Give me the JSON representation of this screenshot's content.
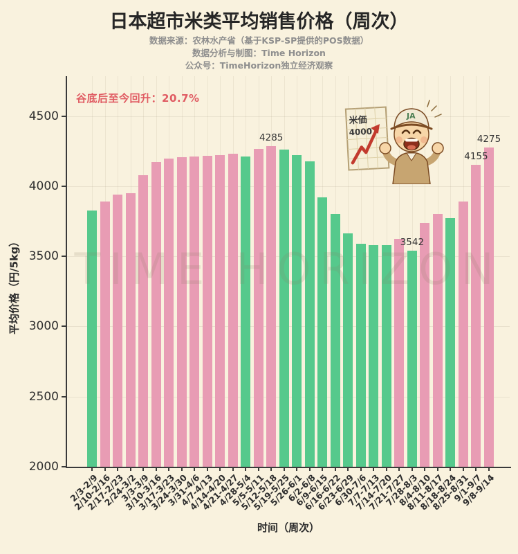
{
  "page": {
    "background": "#f9f2de"
  },
  "header": {
    "title": "日本超市米类平均销售价格（周次）",
    "subtitle_source": "数据来源：农林水产省（基于KSP-SP提供的POS数据）",
    "subtitle_author": "数据分析与制图：Time Horizon",
    "subtitle_account": "公众号：TimeHorizon独立经济观察"
  },
  "annotation": {
    "text": "谷底后至今回升：20.7%",
    "color": "#e05c63"
  },
  "watermark": {
    "text": "TIME HORIZON"
  },
  "mascot": {
    "poster_title": "米価",
    "poster_value": "4000",
    "cap_text": "JA"
  },
  "chart_data": {
    "type": "bar",
    "title": "日本超市米类平均销售价格（周次）",
    "xlabel": "时间（周次）",
    "ylabel": "平均价格（円/5kg）",
    "ylim": [
      2000,
      4785
    ],
    "yticks": [
      2000,
      2500,
      3000,
      3500,
      4000,
      4500
    ],
    "grid": true,
    "legend_position": "none",
    "bar_colors": {
      "up": "#e89cb4",
      "down": "#56c98c"
    },
    "color_meaning": {
      "up": "周环比上涨",
      "down": "周环比下跌"
    },
    "categories": [
      "2/3-2/9",
      "2/10-2/16",
      "2/17-2/23",
      "2/24-3/2",
      "3/3-3/9",
      "3/10-3/16",
      "3/17-3/23",
      "3/24-3/30",
      "3/31-4/6",
      "4/7-4/13",
      "4/14-4/20",
      "4/21-4/27",
      "4/28-5/4",
      "5/5-5/11",
      "5/12-5/18",
      "5/19-5/25",
      "5/26-6/1",
      "6/2-6/8",
      "6/9-6/15",
      "6/16-6/22",
      "6/23-6/29",
      "6/30-7/6",
      "7/7-7/13",
      "7/14-7/20",
      "7/21-7/27",
      "7/28-8/3",
      "8/4-8/10",
      "8/11-8/17",
      "8/18-8/24",
      "8/25-8/31",
      "9/1-9/7",
      "9/8-9/14"
    ],
    "values": [
      3829,
      3892,
      3939,
      3952,
      4077,
      4172,
      4197,
      4206,
      4214,
      4217,
      4220,
      4233,
      4214,
      4268,
      4285,
      4260,
      4223,
      4176,
      3920,
      3801,
      3665,
      3592,
      3582,
      3578,
      3625,
      3542,
      3737,
      3804,
      3775,
      3889,
      4155,
      4275
    ],
    "trends": [
      "down",
      "up",
      "up",
      "up",
      "up",
      "up",
      "up",
      "up",
      "up",
      "up",
      "up",
      "up",
      "down",
      "up",
      "up",
      "down",
      "down",
      "down",
      "down",
      "down",
      "down",
      "down",
      "down",
      "down",
      "up",
      "down",
      "up",
      "up",
      "down",
      "up",
      "up",
      "up"
    ],
    "bar_labels": [
      "",
      "",
      "",
      "",
      "",
      "",
      "",
      "",
      "",
      "",
      "",
      "",
      "",
      "",
      "4285",
      "",
      "",
      "",
      "",
      "",
      "",
      "",
      "",
      "",
      "",
      "3542",
      "",
      "",
      "",
      "",
      "4155",
      "4275"
    ]
  }
}
